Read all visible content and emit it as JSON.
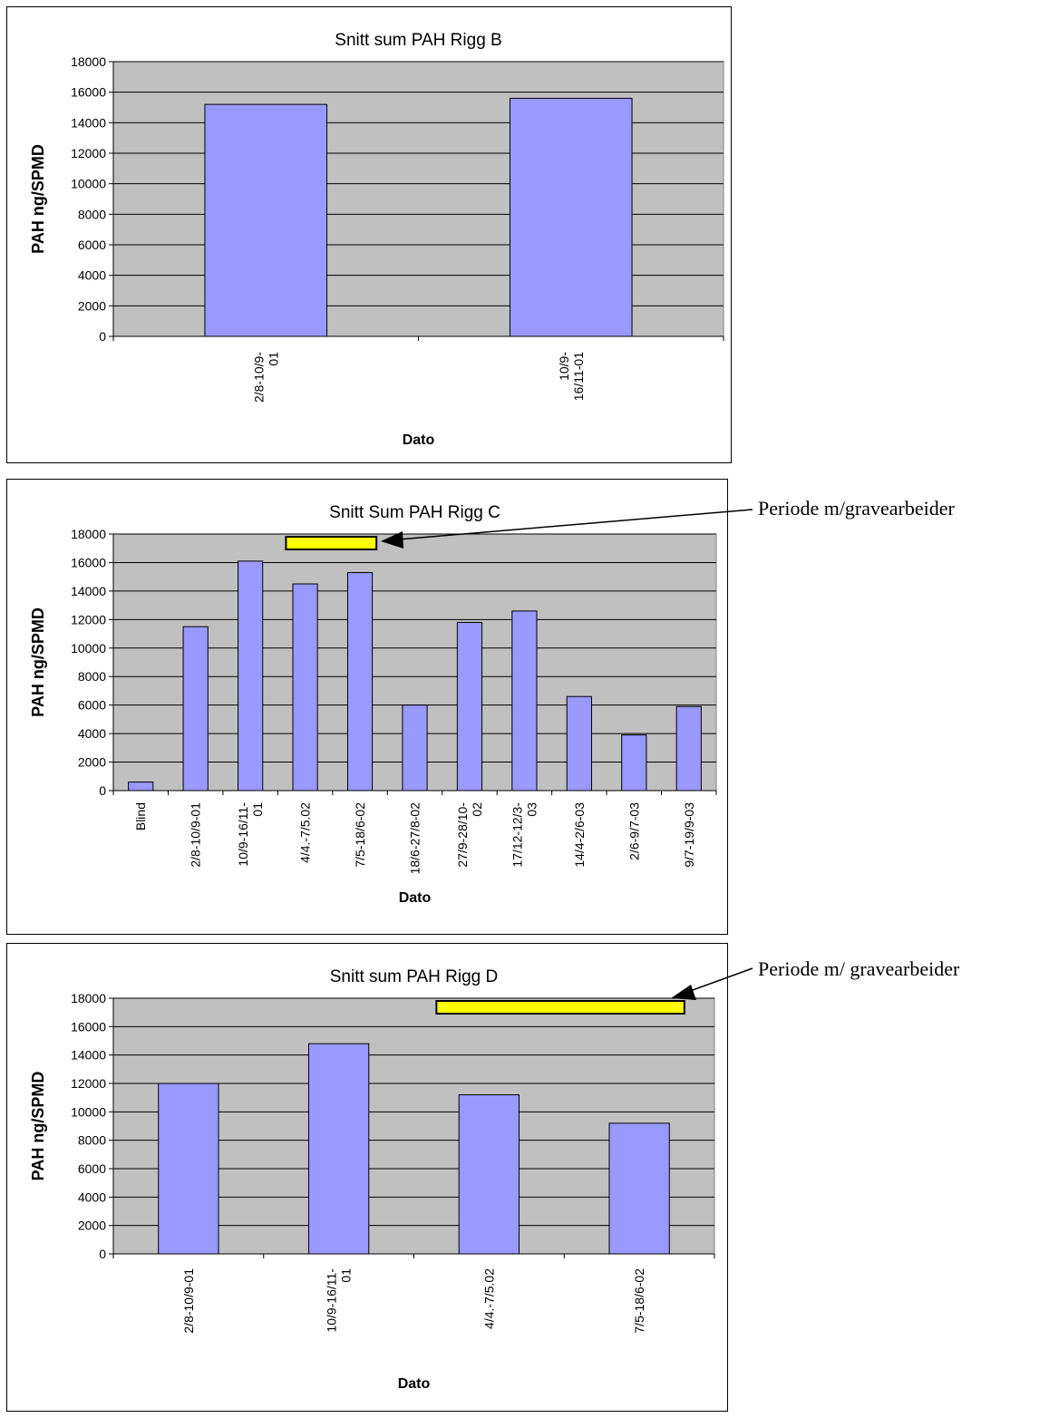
{
  "charts": [
    {
      "chart_data": {
        "type": "bar",
        "title": "Snitt sum PAH Rigg B",
        "xlabel": "Dato",
        "ylabel": "PAH ng/SPMD",
        "ylim": [
          0,
          18000
        ],
        "yticks": [
          "0",
          "2000",
          "4000",
          "6000",
          "8000",
          "10000",
          "12000",
          "14000",
          "16000",
          "18000"
        ],
        "categories": [
          [
            "2/8-10/9-",
            "01"
          ],
          [
            "10/9-",
            "16/11-01"
          ]
        ],
        "values": [
          15200,
          15600
        ],
        "grid": true,
        "bar_color": "#9999ff",
        "plot_bg": "#c0c0c0"
      },
      "annotation": null
    },
    {
      "chart_data": {
        "type": "bar",
        "title": "Snitt Sum PAH Rigg C",
        "xlabel": "Dato",
        "ylabel": "PAH ng/SPMD",
        "ylim": [
          0,
          18000
        ],
        "yticks": [
          "0",
          "2000",
          "4000",
          "6000",
          "8000",
          "10000",
          "12000",
          "14000",
          "16000",
          "18000"
        ],
        "categories": [
          [
            "Blind"
          ],
          [
            "2/8-10/9-01"
          ],
          [
            "10/9-16/11-",
            "01"
          ],
          [
            "4/4.-7/5.02"
          ],
          [
            "7/5-18/6-02"
          ],
          [
            "18/6-27/8-02"
          ],
          [
            "27/9-28/10-",
            "02"
          ],
          [
            "17/12-12/3-",
            "03"
          ],
          [
            "14/4-2/6-03"
          ],
          [
            "2/6-9/7-03"
          ],
          [
            "9/7-19/9-03"
          ]
        ],
        "values": [
          600,
          11500,
          16100,
          14500,
          15300,
          6000,
          11800,
          12600,
          6600,
          3900,
          5900
        ],
        "grid": true,
        "bar_color": "#9999ff",
        "plot_bg": "#c0c0c0",
        "highlight_period": {
          "from_index": 3,
          "to_index": 4,
          "color": "#ffff00"
        }
      },
      "annotation": {
        "text": "Periode m/gravearbeider"
      }
    },
    {
      "chart_data": {
        "type": "bar",
        "title": "Snitt sum PAH Rigg D",
        "xlabel": "Dato",
        "ylabel": "PAH ng/SPMD",
        "ylim": [
          0,
          18000
        ],
        "yticks": [
          "0",
          "2000",
          "4000",
          "6000",
          "8000",
          "10000",
          "12000",
          "14000",
          "16000",
          "18000"
        ],
        "categories": [
          [
            "2/8-10/9-01"
          ],
          [
            "10/9-16/11-",
            "01"
          ],
          [
            "4/4.-7/5.02"
          ],
          [
            "7/5-18/6-02"
          ]
        ],
        "values": [
          12000,
          14800,
          11200,
          9200
        ],
        "grid": true,
        "bar_color": "#9999ff",
        "plot_bg": "#c0c0c0",
        "highlight_period": {
          "from_index": 2,
          "to_index": 3,
          "color": "#ffff00"
        }
      },
      "annotation": {
        "text": "Periode m/ gravearbeider"
      }
    }
  ]
}
